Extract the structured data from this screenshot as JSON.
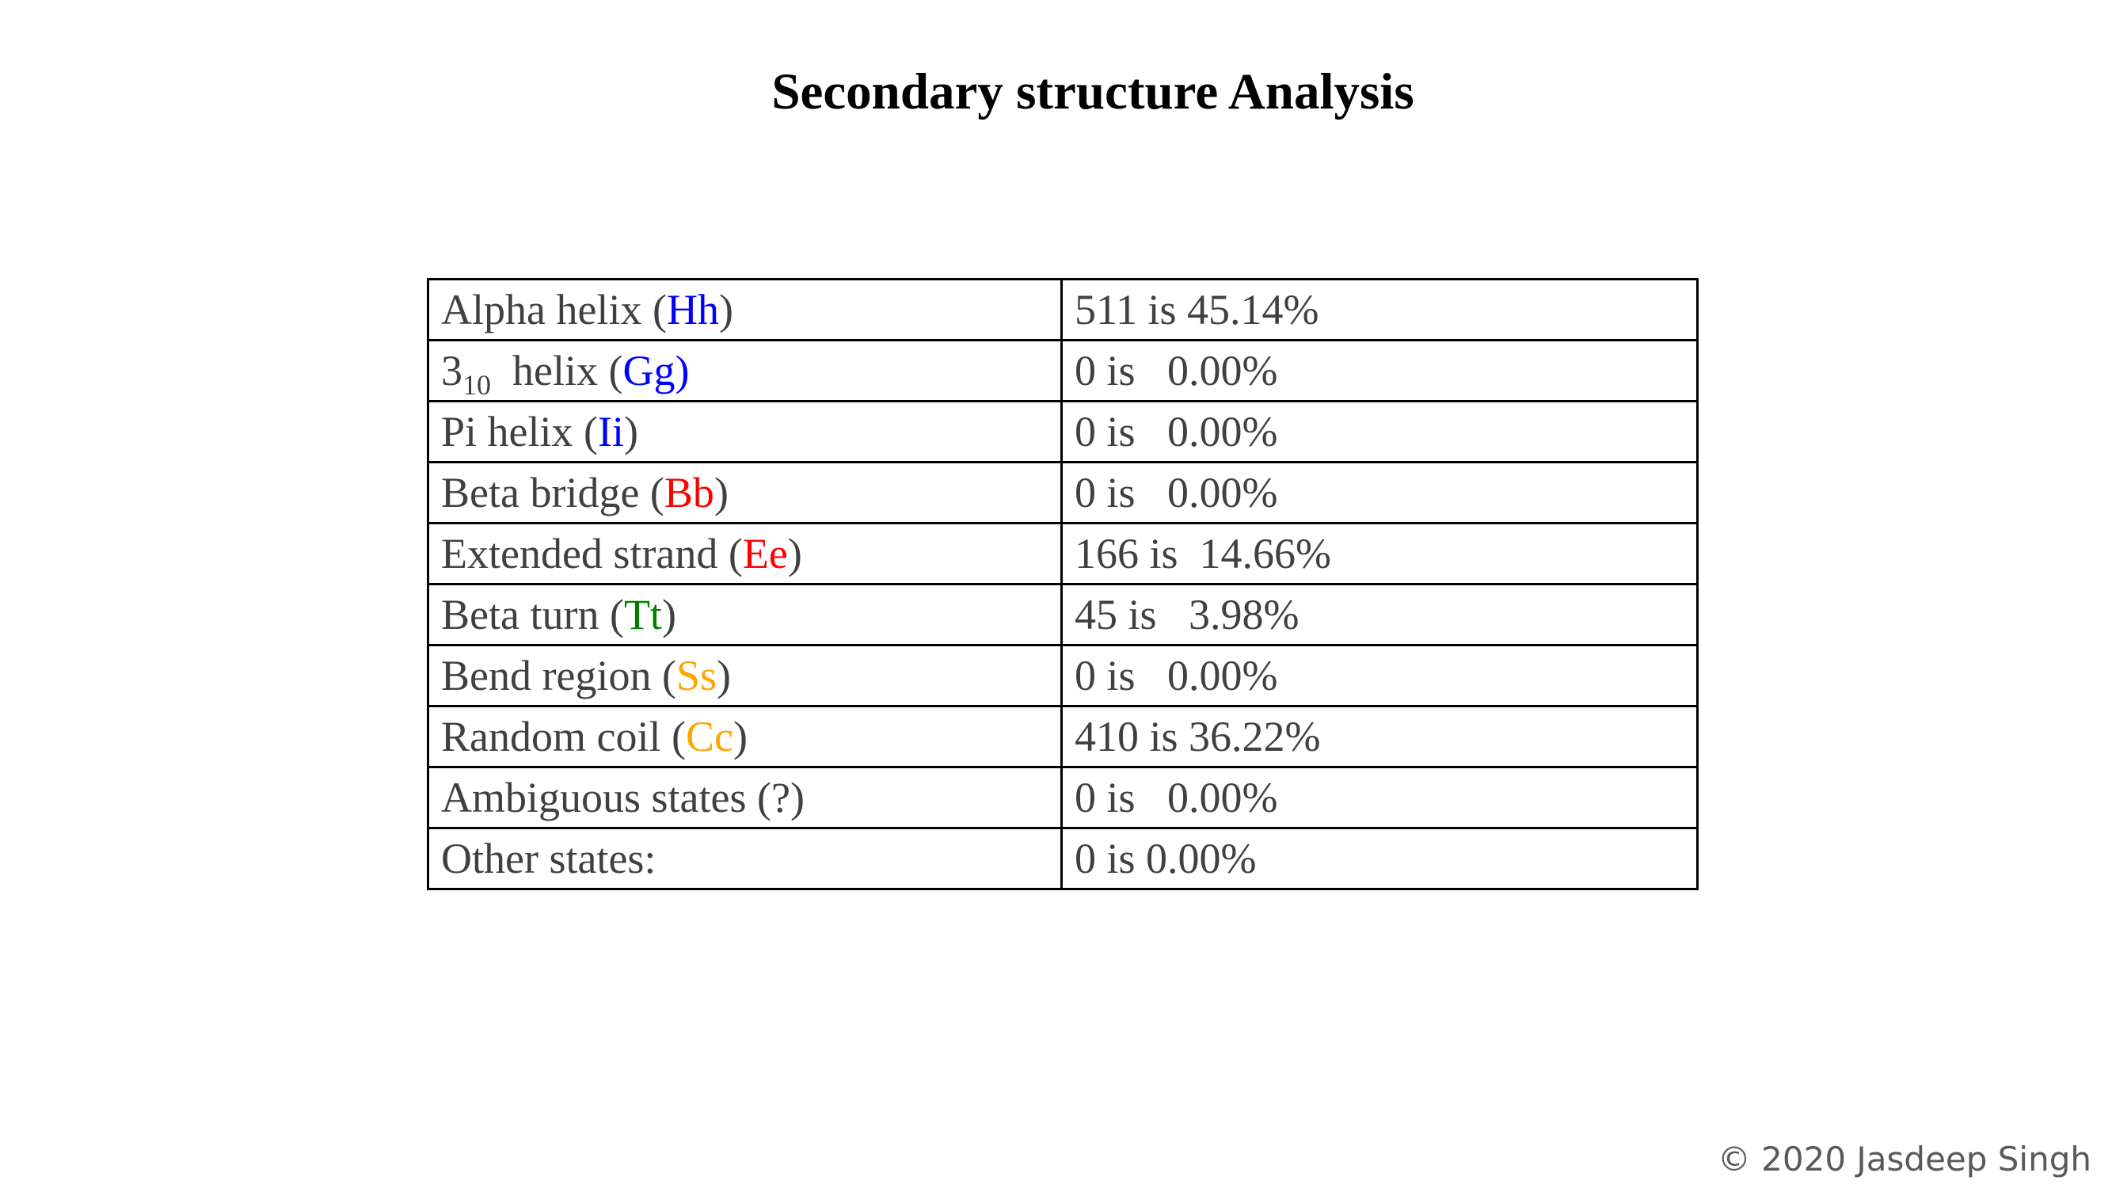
{
  "title": "Secondary structure Analysis",
  "colors": {
    "helix": "#0000ff",
    "strand": "#ff0000",
    "turn": "#008000",
    "coil": "#ffa500",
    "text": "#404040"
  },
  "rows": [
    {
      "label_pre": "Alpha helix (",
      "code": "Hh",
      "label_post": ")",
      "color": "#0000ff",
      "value": "511 is  45.14%"
    },
    {
      "label_num": "3",
      "label_sub": "10",
      "label_pre": "  helix (",
      "code": "Gg)",
      "label_post": "",
      "color": "#0000ff",
      "value": "0 is   0.00%"
    },
    {
      "label_pre": "Pi helix (",
      "code": "Ii",
      "label_post": ")",
      "color": "#0000ff",
      "value": "0 is   0.00%"
    },
    {
      "label_pre": "Beta bridge (",
      "code": "Bb",
      "label_post": ")",
      "color": "#ff0000",
      "value": "0 is   0.00%"
    },
    {
      "label_pre": "Extended strand (",
      "code": "Ee",
      "label_post": ")",
      "color": "#ff0000",
      "value": "166 is  14.66%"
    },
    {
      "label_pre": "Beta turn (",
      "code": "Tt",
      "label_post": ")",
      "color": "#008000",
      "value": "45 is   3.98%"
    },
    {
      "label_pre": "Bend region (",
      "code": "Ss",
      "label_post": ")",
      "color": "#ffa500",
      "value": "0 is   0.00%"
    },
    {
      "label_pre": "Random coil (",
      "code": "Cc",
      "label_post": ")",
      "color": "#ffa500",
      "value": "410 is 36.22%"
    },
    {
      "label_pre": "Ambiguous states (?)",
      "code": "",
      "label_post": "",
      "color": "#404040",
      "value": "0 is   0.00%"
    },
    {
      "label_pre": "Other states:",
      "code": "",
      "label_post": "",
      "color": "#404040",
      "value": "0 is 0.00%"
    }
  ],
  "footer": "© 2020 Jasdeep Singh"
}
